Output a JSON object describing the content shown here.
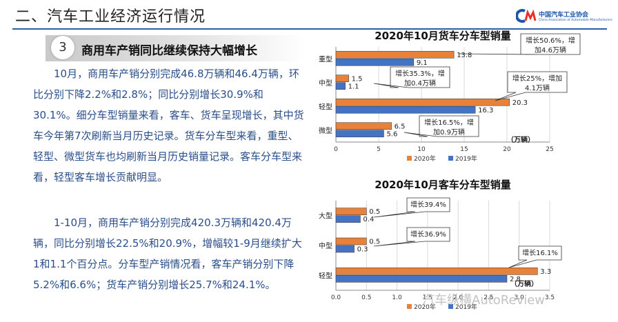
{
  "header": {
    "title": "二、汽车工业经济运行情况"
  },
  "logo": {
    "name_cn": "中国汽车工业协会",
    "name_en": "China Association of Automobile Manufacturers"
  },
  "section": {
    "number": "3",
    "title": "商用车产销同比继续保持大幅增长"
  },
  "paragraphs": [
    "10月，商用车产销分别完成46.8万辆和46.4万辆，环比分别下降2.2%和2.8%；同比分别增长30.9%和30.1%。细分车型销量来看，客车、货车呈现增长，其中货车今年第7次刷新当月历史记录。货车分车型来看，重型、轻型、微型货车也均刷新当月历史销量记录。客车分车型来看，轻型客车增长贡献明显。",
    "1-10月，商用车产销分别完成420.3万辆和420.4万辆，同比分别增长22.5%和20.9%，增幅较1-9月继续扩大1和1.1个百分点。分车型产销情况看，客车产销分别下降5.2%和6.6%；货车产销分别增长25.7%和24.1%。"
  ],
  "watermark": "汽车纵横AutoReview",
  "chart_data": [
    {
      "type": "bar",
      "orientation": "horizontal",
      "title": "2020年10月货车分车型销量",
      "categories": [
        "重型",
        "中型",
        "轻型",
        "微型"
      ],
      "series": [
        {
          "name": "2020年",
          "values": [
            13.8,
            1.5,
            20.3,
            6.5
          ],
          "labels": [
            "13.8",
            "1.5",
            "20.3",
            "6.5"
          ],
          "color": "#e8813a"
        },
        {
          "name": "2019年",
          "values": [
            9.1,
            1.1,
            16.3,
            5.6
          ],
          "labels": [
            "9.1",
            "1.1",
            "16.3",
            "5.6"
          ],
          "color": "#4472c4"
        }
      ],
      "xlim": [
        0,
        25
      ],
      "ticks": [
        0,
        5,
        10,
        15,
        20,
        25
      ],
      "tick_labels": [
        "0",
        "5",
        "10",
        "15",
        "20",
        "25"
      ],
      "unit": "（万辆）",
      "legend_position": "bottom",
      "annotations": [
        {
          "lines": [
            "增长50.6%，增",
            "加4.6万辆"
          ],
          "category": "重型"
        },
        {
          "lines": [
            "增长35.3%，增",
            "加0.4万辆"
          ],
          "category": "中型"
        },
        {
          "lines": [
            "增长25%，增加",
            "4.1万辆"
          ],
          "category": "轻型"
        },
        {
          "lines": [
            "增长16.5%，增",
            "加0.9万辆"
          ],
          "category": "微型"
        }
      ]
    },
    {
      "type": "bar",
      "orientation": "horizontal",
      "title": "2020年10月客车分车型销量",
      "categories": [
        "大型",
        "中型",
        "轻型"
      ],
      "series": [
        {
          "name": "2020年",
          "values": [
            0.5,
            0.5,
            3.3
          ],
          "labels": [
            "0.5",
            "0.5",
            "3.3"
          ],
          "color": "#e8813a"
        },
        {
          "name": "2019年",
          "values": [
            0.4,
            0.3,
            2.8
          ],
          "labels": [
            "0.4",
            "0.3",
            "2.8"
          ],
          "color": "#4472c4"
        }
      ],
      "xlim": [
        0,
        3.5
      ],
      "ticks": [
        0,
        0.5,
        1,
        1.5,
        2,
        2.5,
        3,
        3.5
      ],
      "tick_labels": [
        "0.0",
        "0.5",
        "1.0",
        "1.5",
        "2.0",
        "2.5",
        "3.0",
        "3.5"
      ],
      "unit": "（万辆）",
      "legend_position": "bottom",
      "annotations": [
        {
          "lines": [
            "增长39.4%"
          ],
          "category": "大型"
        },
        {
          "lines": [
            "增长36.9%"
          ],
          "category": "中型"
        },
        {
          "lines": [
            "增长16.1%"
          ],
          "category": "轻型"
        }
      ]
    }
  ]
}
